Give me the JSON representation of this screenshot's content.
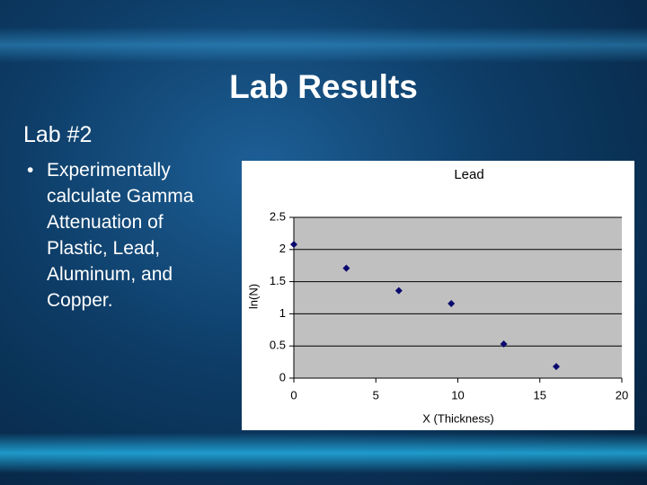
{
  "slide": {
    "title": "Lab Results",
    "subtitle": "Lab #2",
    "bullet": "Experimentally calculate Gamma Attenuation of Plastic, Lead, Aluminum, and Copper."
  },
  "chart_data": {
    "type": "scatter",
    "title": "Lead",
    "x_label": "X (Thickness)",
    "y_label": "ln(N)",
    "x": [
      0,
      3.2,
      6.4,
      9.6,
      12.8,
      16
    ],
    "values": [
      2.08,
      1.71,
      1.36,
      1.16,
      0.53,
      0.18
    ],
    "color": "#0a0a6e",
    "xlim": [
      0,
      20
    ],
    "xticks": [
      0,
      5,
      10,
      15,
      20
    ],
    "ylim": [
      0,
      2.5
    ],
    "yticks": [
      0,
      0.5,
      1,
      1.5,
      2,
      2.5
    ],
    "grid": true
  }
}
